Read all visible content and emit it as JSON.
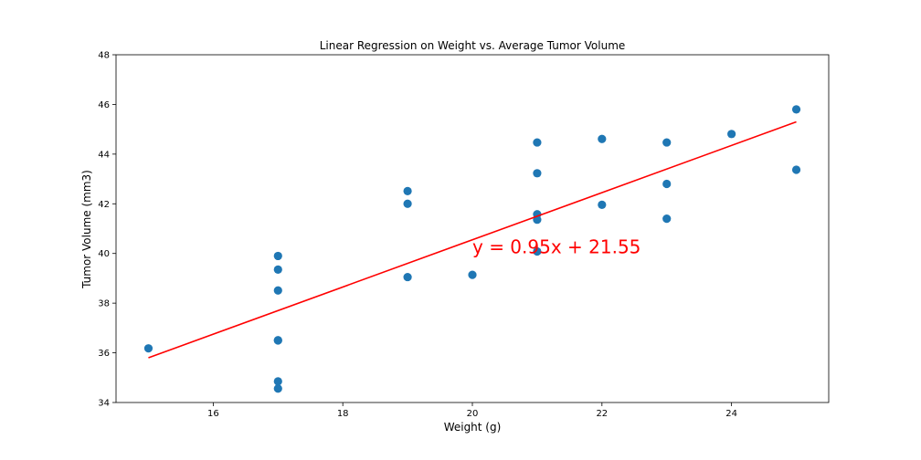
{
  "chart_data": {
    "type": "scatter",
    "title": "Linear Regression on Weight vs. Average Tumor Volume",
    "xlabel": "Weight (g)",
    "ylabel": "Tumor Volume (mm3)",
    "xlim": [
      14.5,
      25.5
    ],
    "ylim": [
      34,
      48
    ],
    "xticks": [
      16,
      18,
      20,
      22,
      24
    ],
    "yticks": [
      34,
      36,
      38,
      40,
      42,
      44,
      46,
      48
    ],
    "grid": false,
    "legend": "none",
    "series": [
      {
        "color": "#1f77b4",
        "points": [
          {
            "x": 15,
            "y": 36.18
          },
          {
            "x": 17,
            "y": 39.9
          },
          {
            "x": 17,
            "y": 39.35
          },
          {
            "x": 17,
            "y": 38.51
          },
          {
            "x": 17,
            "y": 36.51
          },
          {
            "x": 17,
            "y": 36.5
          },
          {
            "x": 17,
            "y": 34.85
          },
          {
            "x": 17,
            "y": 34.56
          },
          {
            "x": 19,
            "y": 42.51
          },
          {
            "x": 19,
            "y": 42.0
          },
          {
            "x": 19,
            "y": 39.05
          },
          {
            "x": 20,
            "y": 39.14
          },
          {
            "x": 21,
            "y": 44.47
          },
          {
            "x": 21,
            "y": 43.23
          },
          {
            "x": 21,
            "y": 41.58
          },
          {
            "x": 21,
            "y": 41.36
          },
          {
            "x": 21,
            "y": 40.08
          },
          {
            "x": 22,
            "y": 44.61
          },
          {
            "x": 22,
            "y": 41.96
          },
          {
            "x": 23,
            "y": 44.47
          },
          {
            "x": 23,
            "y": 42.8
          },
          {
            "x": 23,
            "y": 41.4
          },
          {
            "x": 24,
            "y": 44.81
          },
          {
            "x": 25,
            "y": 45.8
          },
          {
            "x": 25,
            "y": 43.37
          }
        ]
      }
    ],
    "regression": {
      "slope": 0.95,
      "intercept": 21.55,
      "x_range": [
        15,
        25
      ],
      "color": "#ff0000",
      "equation": "y = 0.95x + 21.55",
      "equation_anchor": {
        "x": 20,
        "y": 40
      },
      "equation_color": "#ff0000"
    }
  }
}
